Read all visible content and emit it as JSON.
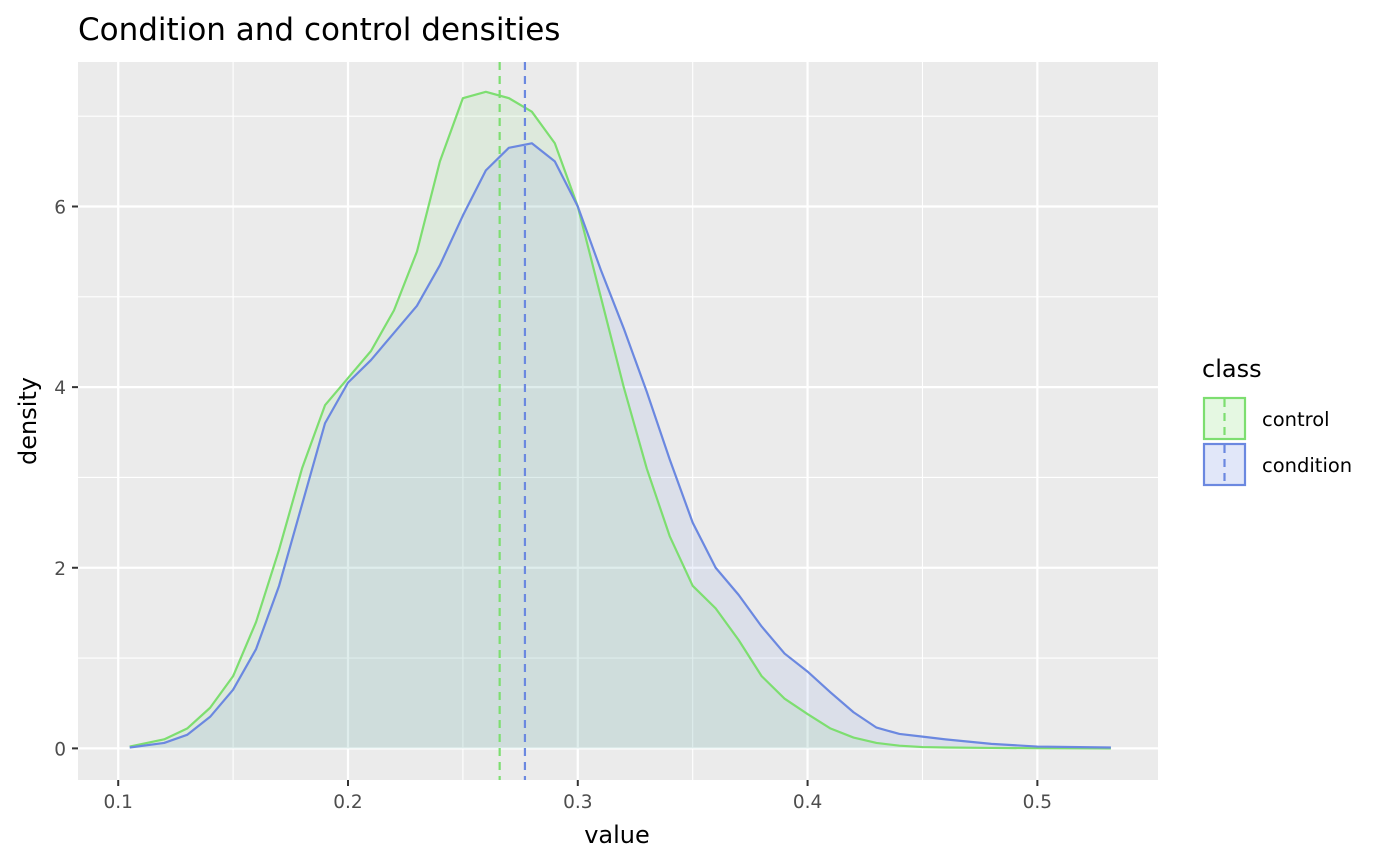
{
  "chart_data": {
    "type": "area",
    "title": "Condition and control densities",
    "xlabel": "value",
    "ylabel": "density",
    "xlim": [
      0.0825,
      0.5525
    ],
    "ylim": [
      -0.35,
      7.6
    ],
    "x_ticks": [
      {
        "value": 0.1,
        "label": "0.1"
      },
      {
        "value": 0.2,
        "label": "0.2"
      },
      {
        "value": 0.3,
        "label": "0.3"
      },
      {
        "value": 0.4,
        "label": "0.4"
      },
      {
        "value": 0.5,
        "label": "0.5"
      }
    ],
    "y_ticks": [
      {
        "value": 0,
        "label": "0"
      },
      {
        "value": 2,
        "label": "2"
      },
      {
        "value": 4,
        "label": "4"
      },
      {
        "value": 6,
        "label": "6"
      }
    ],
    "grid": true,
    "legend": {
      "title": "class",
      "position": "right"
    },
    "series": [
      {
        "name": "control",
        "color": "#7dde70",
        "mean": 0.266,
        "x": [
          0.105,
          0.12,
          0.13,
          0.14,
          0.15,
          0.16,
          0.17,
          0.18,
          0.19,
          0.2,
          0.21,
          0.22,
          0.23,
          0.24,
          0.25,
          0.26,
          0.27,
          0.28,
          0.29,
          0.3,
          0.31,
          0.32,
          0.33,
          0.34,
          0.35,
          0.36,
          0.37,
          0.38,
          0.39,
          0.4,
          0.41,
          0.42,
          0.43,
          0.44,
          0.45,
          0.46,
          0.48,
          0.5,
          0.532
        ],
        "y": [
          0.02,
          0.1,
          0.22,
          0.45,
          0.8,
          1.4,
          2.2,
          3.1,
          3.8,
          4.1,
          4.4,
          4.85,
          5.5,
          6.5,
          7.2,
          7.27,
          7.2,
          7.05,
          6.7,
          6.0,
          5.0,
          4.0,
          3.1,
          2.35,
          1.8,
          1.55,
          1.2,
          0.8,
          0.55,
          0.38,
          0.22,
          0.12,
          0.06,
          0.03,
          0.015,
          0.01,
          0.005,
          0.002,
          0.0
        ]
      },
      {
        "name": "condition",
        "color": "#6b88e0",
        "mean": 0.277,
        "x": [
          0.105,
          0.12,
          0.13,
          0.14,
          0.15,
          0.16,
          0.17,
          0.18,
          0.19,
          0.2,
          0.21,
          0.22,
          0.23,
          0.24,
          0.25,
          0.26,
          0.27,
          0.28,
          0.29,
          0.3,
          0.31,
          0.32,
          0.33,
          0.34,
          0.35,
          0.36,
          0.37,
          0.38,
          0.39,
          0.4,
          0.41,
          0.42,
          0.43,
          0.44,
          0.45,
          0.46,
          0.48,
          0.5,
          0.532
        ],
        "y": [
          0.01,
          0.06,
          0.15,
          0.35,
          0.65,
          1.1,
          1.8,
          2.7,
          3.6,
          4.05,
          4.3,
          4.6,
          4.9,
          5.35,
          5.9,
          6.4,
          6.65,
          6.7,
          6.5,
          6.0,
          5.3,
          4.65,
          3.95,
          3.2,
          2.5,
          2.0,
          1.7,
          1.35,
          1.05,
          0.85,
          0.62,
          0.4,
          0.23,
          0.16,
          0.13,
          0.1,
          0.05,
          0.02,
          0.01
        ]
      }
    ]
  }
}
